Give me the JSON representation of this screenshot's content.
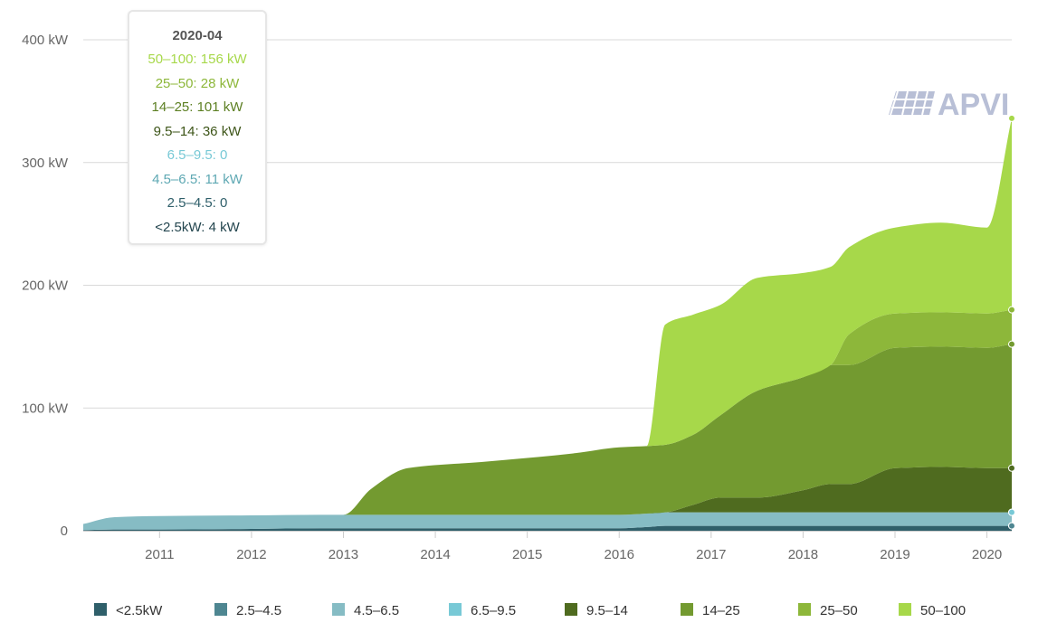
{
  "chart_data": {
    "type": "area",
    "stacked": true,
    "x": [
      2010.17,
      2010.5,
      2011.0,
      2012.0,
      2012.75,
      2013.0,
      2013.3,
      2013.7,
      2014.5,
      2015.5,
      2016.0,
      2016.3,
      2016.5,
      2016.8,
      2017.1,
      2017.5,
      2018.0,
      2018.3,
      2018.5,
      2019.0,
      2019.5,
      2020.0,
      2020.27
    ],
    "series": [
      {
        "name": "<2.5kW",
        "color": "#2f5f6a",
        "values": [
          0.5,
          1,
          1,
          1.5,
          2,
          2,
          2,
          2,
          2,
          2,
          2,
          3,
          4,
          4,
          4,
          4,
          4,
          4,
          4,
          4,
          4,
          4,
          4
        ]
      },
      {
        "name": "2.5–4.5",
        "color": "#4e8691",
        "values": [
          0,
          0,
          0,
          0,
          0,
          0,
          0,
          0,
          0,
          0,
          0,
          0,
          0,
          0,
          0,
          0,
          0,
          0,
          0,
          0,
          0,
          0,
          0
        ]
      },
      {
        "name": "4.5–6.5",
        "color": "#86bcc4",
        "values": [
          5,
          10,
          11,
          11,
          11,
          11,
          11,
          11,
          11,
          11,
          11,
          11,
          11,
          11,
          11,
          11,
          11,
          11,
          11,
          11,
          11,
          11,
          11
        ]
      },
      {
        "name": "6.5–9.5",
        "color": "#78c9d6",
        "values": [
          0,
          0,
          0,
          0,
          0,
          0,
          0,
          0,
          0,
          0,
          0,
          0,
          0,
          0,
          0,
          0,
          0,
          0,
          0,
          0,
          0,
          0,
          0
        ]
      },
      {
        "name": "9.5–14",
        "color": "#4f6b1f",
        "values": [
          0,
          0,
          0,
          0,
          0,
          0,
          0,
          0,
          0,
          0,
          0,
          0,
          0,
          6,
          12,
          12,
          18,
          23,
          23,
          36,
          37,
          36,
          36
        ]
      },
      {
        "name": "14–25",
        "color": "#739a30",
        "values": [
          0,
          0,
          0,
          0,
          0,
          0,
          21,
          38,
          43,
          50,
          55,
          55,
          55,
          57,
          67,
          87,
          92,
          97,
          97,
          98,
          98,
          98,
          101
        ]
      },
      {
        "name": "25–50",
        "color": "#8db73a",
        "values": [
          0,
          0,
          0,
          0,
          0,
          0,
          0,
          0,
          0,
          0,
          0,
          0,
          0,
          0,
          0,
          0,
          0,
          0,
          25,
          28,
          28,
          28,
          28
        ]
      },
      {
        "name": "50–100",
        "color": "#a7d84a",
        "values": [
          0,
          0,
          0,
          0,
          0,
          0,
          0,
          0,
          0,
          0,
          0,
          0,
          98,
          98,
          90,
          92,
          85,
          80,
          71,
          70,
          73,
          70,
          156
        ]
      }
    ],
    "xticks": [
      "2011",
      "2012",
      "2013",
      "2014",
      "2015",
      "2016",
      "2017",
      "2018",
      "2019",
      "2020"
    ],
    "yticks": [
      "0",
      "100 kW",
      "200 kW",
      "300 kW",
      "400 kW"
    ],
    "ylim": [
      0,
      400
    ],
    "xlim": [
      2010.17,
      2020.27
    ],
    "grid": true,
    "legend": "bottom"
  },
  "tooltip": {
    "title": "2020-04",
    "rows": [
      {
        "text": "50–100: 156 kW",
        "color": "#a7d84a"
      },
      {
        "text": "25–50: 28 kW",
        "color": "#8db73a"
      },
      {
        "text": "14–25: 101 kW",
        "color": "#5c7f22"
      },
      {
        "text": "9.5–14: 36 kW",
        "color": "#3d5518"
      },
      {
        "text": "6.5–9.5: 0",
        "color": "#78c9d6"
      },
      {
        "text": "4.5–6.5: 11 kW",
        "color": "#5ea8b3"
      },
      {
        "text": "2.5–4.5: 0",
        "color": "#2f5f6a"
      },
      {
        "text": "<2.5kW: 4 kW",
        "color": "#24464f"
      }
    ]
  },
  "logo": {
    "text": "APVI",
    "color": "#b8bfd6"
  }
}
